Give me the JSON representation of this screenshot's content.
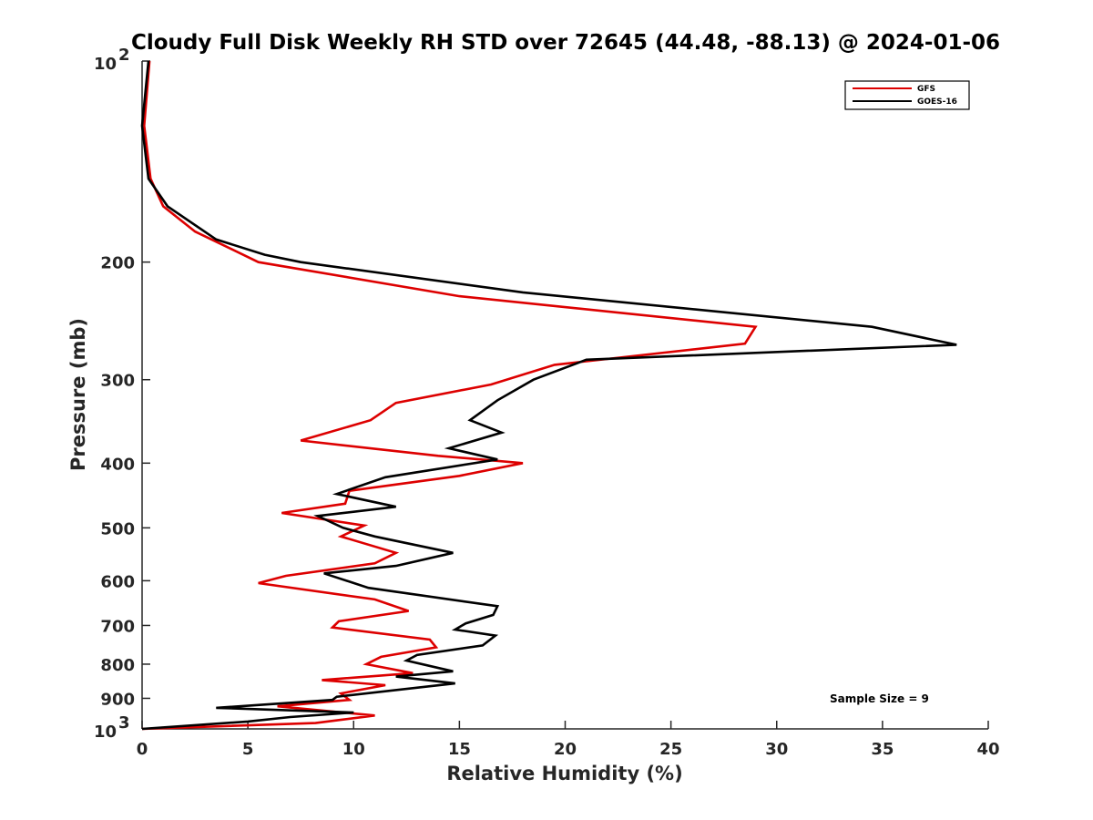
{
  "chart_data": {
    "type": "line",
    "title": "Cloudy Full Disk Weekly RH STD over 72645 (44.48, -88.13) @ 2024-01-06",
    "xlabel": "Relative Humidity (%)",
    "ylabel": "Pressure (mb)",
    "xlim": [
      0,
      40
    ],
    "ylim": [
      100,
      1000
    ],
    "y_scale": "log",
    "y_reversed": true,
    "grid": false,
    "legend_position": "top-right",
    "x_ticks": [
      "0",
      "5",
      "10",
      "15",
      "20",
      "25",
      "30",
      "35",
      "40"
    ],
    "y_ticks": [
      {
        "value": 100,
        "base": "10",
        "exp": "2"
      },
      {
        "value": 200,
        "label": "200"
      },
      {
        "value": 300,
        "label": "300"
      },
      {
        "value": 400,
        "label": "400"
      },
      {
        "value": 500,
        "label": "500"
      },
      {
        "value": 600,
        "label": "600"
      },
      {
        "value": 700,
        "label": "700"
      },
      {
        "value": 800,
        "label": "800"
      },
      {
        "value": 900,
        "label": "900"
      },
      {
        "value": 1000,
        "base": "10",
        "exp": "3"
      }
    ],
    "annotation": "Sample Size = 9",
    "series": [
      {
        "name": "GFS",
        "color": "#dd0000",
        "points": [
          [
            0.35,
            100
          ],
          [
            0.1,
            125
          ],
          [
            0.4,
            150
          ],
          [
            1.0,
            165
          ],
          [
            2.5,
            180
          ],
          [
            5.5,
            200
          ],
          [
            15.0,
            225
          ],
          [
            29.0,
            250
          ],
          [
            28.5,
            265
          ],
          [
            19.5,
            285
          ],
          [
            16.5,
            305
          ],
          [
            12.0,
            325
          ],
          [
            10.8,
            345
          ],
          [
            7.5,
            370
          ],
          [
            14.0,
            390
          ],
          [
            18.0,
            400
          ],
          [
            15.0,
            418
          ],
          [
            9.8,
            440
          ],
          [
            9.6,
            460
          ],
          [
            6.6,
            475
          ],
          [
            10.5,
            496
          ],
          [
            9.4,
            515
          ],
          [
            12.0,
            545
          ],
          [
            11.0,
            565
          ],
          [
            6.8,
            590
          ],
          [
            5.5,
            605
          ],
          [
            11.0,
            640
          ],
          [
            12.6,
            666
          ],
          [
            9.3,
            690
          ],
          [
            9.0,
            705
          ],
          [
            13.6,
            735
          ],
          [
            13.9,
            755
          ],
          [
            11.3,
            780
          ],
          [
            10.6,
            800
          ],
          [
            12.8,
            825
          ],
          [
            8.5,
            845
          ],
          [
            11.5,
            860
          ],
          [
            9.4,
            885
          ],
          [
            9.8,
            905
          ],
          [
            6.4,
            925
          ],
          [
            11.0,
            955
          ],
          [
            9.3,
            970
          ],
          [
            8.2,
            980
          ],
          [
            0.0,
            1000
          ]
        ]
      },
      {
        "name": "GOES-16",
        "color": "#000000",
        "points": [
          [
            0.3,
            100
          ],
          [
            0.0,
            125
          ],
          [
            0.3,
            150
          ],
          [
            1.2,
            165
          ],
          [
            3.5,
            185
          ],
          [
            5.8,
            195
          ],
          [
            7.5,
            200
          ],
          [
            18.0,
            222
          ],
          [
            34.5,
            250
          ],
          [
            38.5,
            266
          ],
          [
            21.0,
            280
          ],
          [
            18.5,
            300
          ],
          [
            16.8,
            322
          ],
          [
            15.5,
            345
          ],
          [
            17.0,
            360
          ],
          [
            14.5,
            380
          ],
          [
            16.8,
            395
          ],
          [
            11.5,
            420
          ],
          [
            9.2,
            445
          ],
          [
            12.0,
            465
          ],
          [
            8.3,
            480
          ],
          [
            9.5,
            500
          ],
          [
            11.0,
            515
          ],
          [
            14.7,
            545
          ],
          [
            12.0,
            570
          ],
          [
            8.6,
            585
          ],
          [
            10.7,
            615
          ],
          [
            16.8,
            655
          ],
          [
            16.6,
            675
          ],
          [
            15.3,
            695
          ],
          [
            14.8,
            710
          ],
          [
            16.7,
            725
          ],
          [
            16.1,
            750
          ],
          [
            13.0,
            775
          ],
          [
            12.5,
            790
          ],
          [
            14.7,
            820
          ],
          [
            12.0,
            835
          ],
          [
            14.8,
            855
          ],
          [
            9.2,
            895
          ],
          [
            9.0,
            905
          ],
          [
            3.5,
            930
          ],
          [
            10.0,
            945
          ],
          [
            7.0,
            960
          ],
          [
            5.0,
            975
          ],
          [
            0.0,
            1000
          ]
        ]
      }
    ]
  }
}
